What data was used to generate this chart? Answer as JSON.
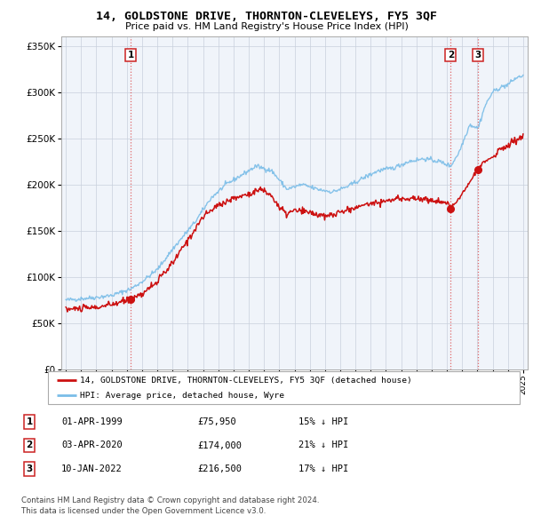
{
  "title": "14, GOLDSTONE DRIVE, THORNTON-CLEVELEYS, FY5 3QF",
  "subtitle": "Price paid vs. HM Land Registry's House Price Index (HPI)",
  "legend_line1": "14, GOLDSTONE DRIVE, THORNTON-CLEVELEYS, FY5 3QF (detached house)",
  "legend_line2": "HPI: Average price, detached house, Wyre",
  "footer1": "Contains HM Land Registry data © Crown copyright and database right 2024.",
  "footer2": "This data is licensed under the Open Government Licence v3.0.",
  "table": [
    {
      "num": "1",
      "date": "01-APR-1999",
      "price": "£75,950",
      "hpi": "15% ↓ HPI"
    },
    {
      "num": "2",
      "date": "03-APR-2020",
      "price": "£174,000",
      "hpi": "21% ↓ HPI"
    },
    {
      "num": "3",
      "date": "10-JAN-2022",
      "price": "£216,500",
      "hpi": "17% ↓ HPI"
    }
  ],
  "sale_points": [
    {
      "year": 1999.25,
      "price": 75950,
      "label": "1"
    },
    {
      "year": 2020.25,
      "price": 174000,
      "label": "2"
    },
    {
      "year": 2022.04,
      "price": 216500,
      "label": "3"
    }
  ],
  "hpi_color": "#7abde8",
  "price_color": "#cc1111",
  "ylim_min": 0,
  "ylim_max": 360000,
  "xlim_min": 1994.7,
  "xlim_max": 2025.3,
  "bg_color": "#f0f4fa"
}
